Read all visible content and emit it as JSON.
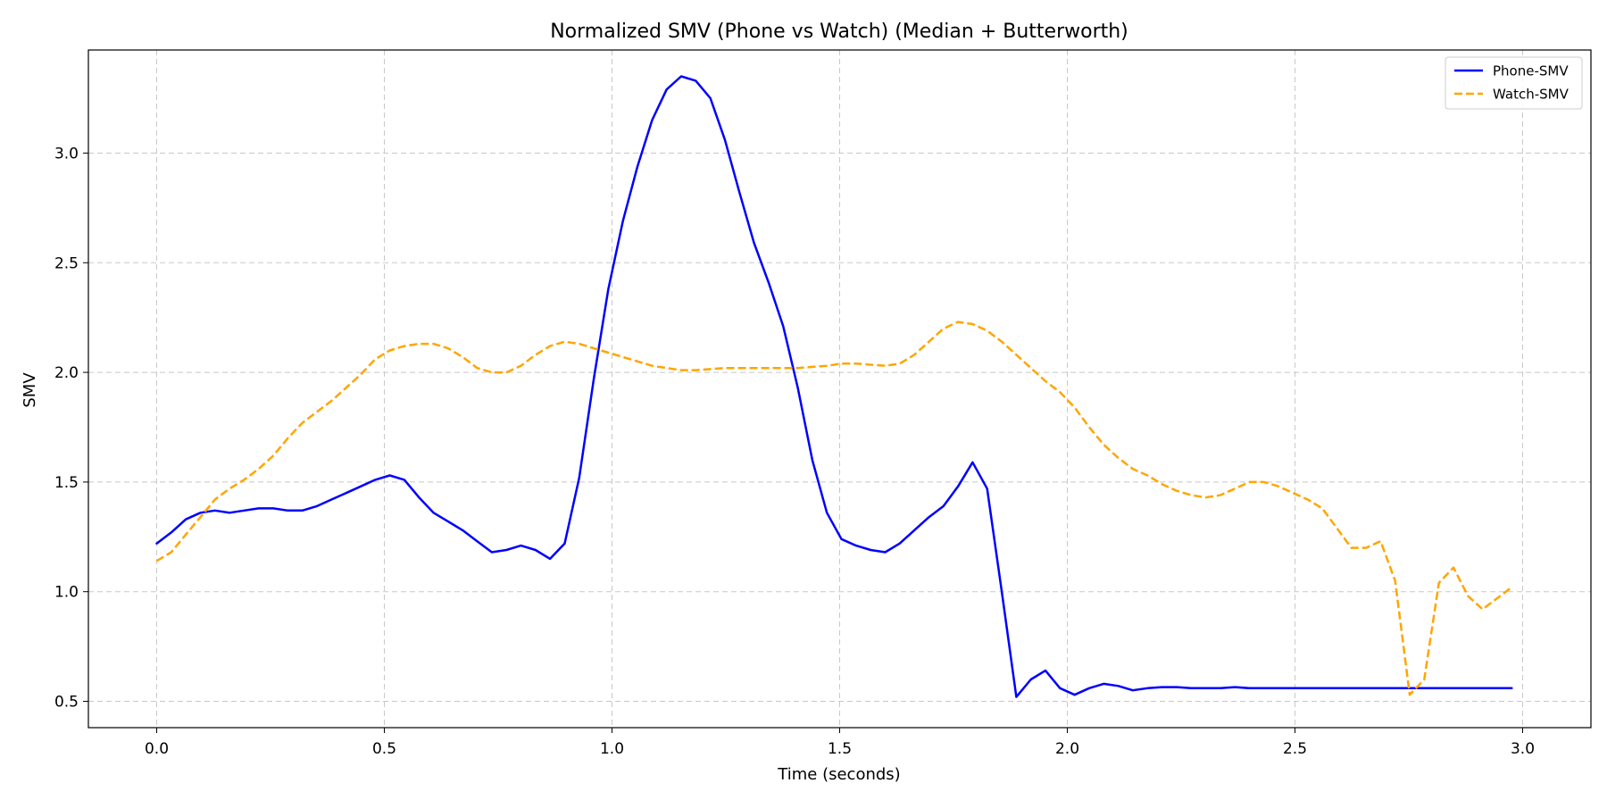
{
  "chart_data": {
    "type": "line",
    "title": "Normalized SMV (Phone vs Watch) (Median + Butterworth)",
    "xlabel": "Time (seconds)",
    "ylabel": "SMV",
    "xlim": [
      -0.15,
      3.15
    ],
    "ylim": [
      0.38,
      3.47
    ],
    "xticks": [
      "0.0",
      "0.5",
      "1.0",
      "1.5",
      "2.0",
      "2.5",
      "3.0"
    ],
    "yticks": [
      "0.5",
      "1.0",
      "1.5",
      "2.0",
      "2.5",
      "3.0"
    ],
    "grid": true,
    "legend_position": "top-right",
    "series": [
      {
        "name": "Phone-SMV",
        "color": "#0000ff",
        "dash": "solid",
        "x": [
          0.0,
          0.032,
          0.064,
          0.096,
          0.128,
          0.16,
          0.192,
          0.224,
          0.256,
          0.288,
          0.32,
          0.352,
          0.384,
          0.416,
          0.448,
          0.48,
          0.512,
          0.544,
          0.576,
          0.608,
          0.64,
          0.672,
          0.704,
          0.736,
          0.768,
          0.8,
          0.832,
          0.864,
          0.896,
          0.928,
          0.96,
          0.992,
          1.024,
          1.056,
          1.088,
          1.12,
          1.152,
          1.184,
          1.216,
          1.248,
          1.28,
          1.312,
          1.344,
          1.376,
          1.408,
          1.44,
          1.472,
          1.504,
          1.536,
          1.568,
          1.6,
          1.632,
          1.664,
          1.696,
          1.728,
          1.76,
          1.792,
          1.824,
          1.856,
          1.888,
          1.92,
          1.952,
          1.984,
          2.016,
          2.048,
          2.08,
          2.112,
          2.144,
          2.176,
          2.208,
          2.24,
          2.272,
          2.304,
          2.336,
          2.368,
          2.4,
          2.432,
          2.464,
          2.496,
          2.528,
          2.56,
          2.592,
          2.624,
          2.656,
          2.688,
          2.72,
          2.752,
          2.784,
          2.816,
          2.848,
          2.88,
          2.912,
          2.944,
          2.976
        ],
        "y": [
          1.22,
          1.27,
          1.33,
          1.36,
          1.37,
          1.36,
          1.37,
          1.38,
          1.38,
          1.37,
          1.37,
          1.39,
          1.42,
          1.45,
          1.48,
          1.51,
          1.53,
          1.51,
          1.43,
          1.36,
          1.32,
          1.28,
          1.23,
          1.18,
          1.19,
          1.21,
          1.19,
          1.15,
          1.22,
          1.52,
          1.97,
          2.38,
          2.69,
          2.94,
          3.15,
          3.29,
          3.35,
          3.33,
          3.25,
          3.06,
          2.82,
          2.59,
          2.41,
          2.21,
          1.93,
          1.6,
          1.36,
          1.24,
          1.21,
          1.19,
          1.18,
          1.22,
          1.28,
          1.34,
          1.39,
          1.48,
          1.59,
          1.47,
          1.0,
          0.52,
          0.6,
          0.64,
          0.56,
          0.53,
          0.56,
          0.58,
          0.57,
          0.55,
          0.56,
          0.565,
          0.565,
          0.56,
          0.56,
          0.56,
          0.565,
          0.56,
          0.56,
          0.56,
          0.56,
          0.56,
          0.56,
          0.56,
          0.56,
          0.56,
          0.56,
          0.56,
          0.56,
          0.56,
          0.56,
          0.56,
          0.56,
          0.56,
          0.56,
          0.56
        ]
      },
      {
        "name": "Watch-SMV",
        "color": "#ffa500",
        "dash": "dashed",
        "x": [
          0.0,
          0.032,
          0.064,
          0.096,
          0.128,
          0.16,
          0.192,
          0.224,
          0.256,
          0.288,
          0.32,
          0.352,
          0.384,
          0.416,
          0.448,
          0.48,
          0.512,
          0.544,
          0.576,
          0.608,
          0.64,
          0.672,
          0.704,
          0.736,
          0.768,
          0.8,
          0.832,
          0.864,
          0.896,
          0.928,
          0.96,
          0.992,
          1.024,
          1.056,
          1.088,
          1.12,
          1.152,
          1.184,
          1.216,
          1.248,
          1.28,
          1.312,
          1.344,
          1.376,
          1.408,
          1.44,
          1.472,
          1.504,
          1.536,
          1.568,
          1.6,
          1.632,
          1.664,
          1.696,
          1.728,
          1.76,
          1.792,
          1.824,
          1.856,
          1.888,
          1.92,
          1.952,
          1.984,
          2.016,
          2.048,
          2.08,
          2.112,
          2.144,
          2.176,
          2.208,
          2.24,
          2.272,
          2.304,
          2.336,
          2.368,
          2.4,
          2.432,
          2.464,
          2.496,
          2.528,
          2.56,
          2.592,
          2.624,
          2.656,
          2.688,
          2.72,
          2.752,
          2.784,
          2.816,
          2.848,
          2.88,
          2.912,
          2.944,
          2.976
        ],
        "y": [
          1.14,
          1.18,
          1.26,
          1.34,
          1.42,
          1.47,
          1.51,
          1.56,
          1.62,
          1.7,
          1.77,
          1.82,
          1.87,
          1.93,
          1.99,
          2.06,
          2.1,
          2.12,
          2.13,
          2.13,
          2.11,
          2.07,
          2.02,
          2.0,
          2.0,
          2.03,
          2.08,
          2.12,
          2.14,
          2.13,
          2.11,
          2.09,
          2.07,
          2.05,
          2.03,
          2.02,
          2.01,
          2.01,
          2.015,
          2.02,
          2.02,
          2.02,
          2.02,
          2.02,
          2.02,
          2.025,
          2.03,
          2.04,
          2.04,
          2.035,
          2.03,
          2.04,
          2.08,
          2.14,
          2.2,
          2.23,
          2.22,
          2.19,
          2.14,
          2.08,
          2.02,
          1.96,
          1.91,
          1.84,
          1.75,
          1.67,
          1.61,
          1.56,
          1.53,
          1.49,
          1.46,
          1.44,
          1.43,
          1.44,
          1.47,
          1.5,
          1.5,
          1.48,
          1.45,
          1.42,
          1.38,
          1.29,
          1.2,
          1.2,
          1.23,
          1.05,
          0.53,
          0.6,
          1.04,
          1.11,
          0.98,
          0.92,
          0.97,
          1.02
        ]
      }
    ]
  }
}
